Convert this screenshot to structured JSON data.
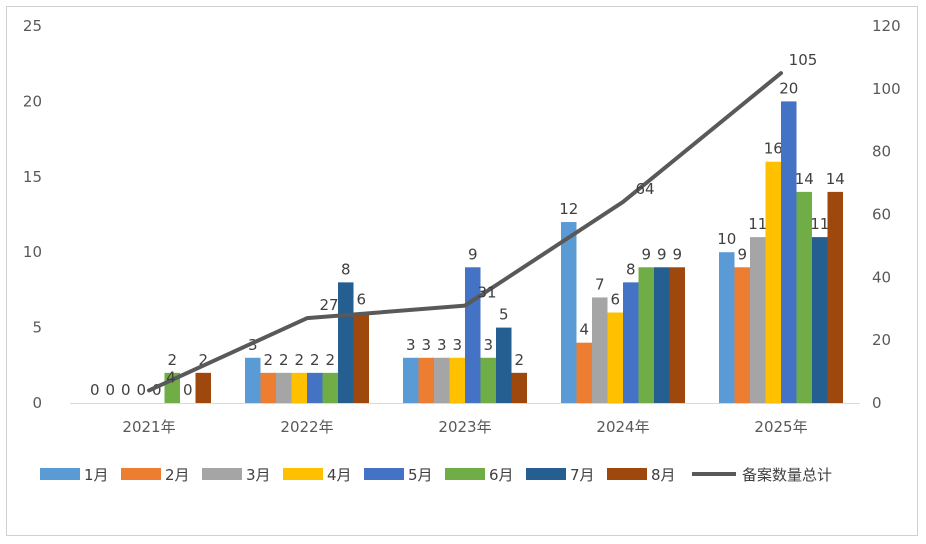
{
  "chart_data": {
    "type": "bar",
    "categories": [
      "2021年",
      "2022年",
      "2023年",
      "2024年",
      "2025年"
    ],
    "series": [
      {
        "name": "1月",
        "color": "#5B9BD5",
        "values": [
          0,
          3,
          3,
          12,
          10
        ]
      },
      {
        "name": "2月",
        "color": "#ED7D31",
        "values": [
          0,
          2,
          3,
          4,
          9
        ]
      },
      {
        "name": "3月",
        "color": "#A5A5A5",
        "values": [
          0,
          2,
          3,
          7,
          11
        ]
      },
      {
        "name": "4月",
        "color": "#FFC000",
        "values": [
          0,
          2,
          3,
          6,
          16
        ]
      },
      {
        "name": "5月",
        "color": "#4472C4",
        "values": [
          0,
          2,
          9,
          8,
          20
        ]
      },
      {
        "name": "6月",
        "color": "#70AD47",
        "values": [
          2,
          2,
          3,
          9,
          14
        ]
      },
      {
        "name": "7月",
        "color": "#255E91",
        "values": [
          0,
          8,
          5,
          9,
          11
        ]
      },
      {
        "name": "8月",
        "color": "#9E480E",
        "values": [
          2,
          6,
          2,
          9,
          14
        ]
      }
    ],
    "line": {
      "name": "备案数量总计",
      "color": "#595959",
      "axis": "right",
      "values": [
        4,
        27,
        31,
        64,
        105
      ]
    },
    "y_left": {
      "min": 0,
      "max": 25,
      "ticks": [
        "0",
        "5",
        "10",
        "15",
        "20",
        "25"
      ]
    },
    "y_right": {
      "min": 0,
      "max": 120,
      "ticks": [
        "0",
        "20",
        "40",
        "60",
        "80",
        "100",
        "120"
      ]
    },
    "grid": false,
    "legend": "bottom"
  }
}
